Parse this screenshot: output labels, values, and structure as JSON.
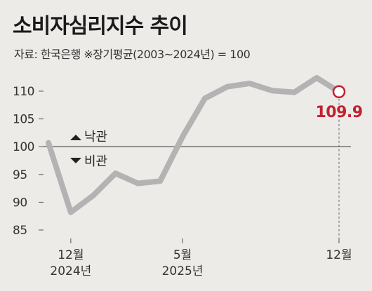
{
  "header": {
    "title": "소비자심리지수 추이",
    "source": "자료: 한국은행 ※장기평균(2003~2024년) = 100"
  },
  "chart_data": {
    "type": "line",
    "title": "소비자심리지수 추이",
    "x": [
      "2024-11",
      "2024-12",
      "2025-01",
      "2025-02",
      "2025-03",
      "2025-04",
      "2025-05",
      "2025-06",
      "2025-07",
      "2025-08",
      "2025-09",
      "2025-10",
      "2025-11",
      "2025-12"
    ],
    "series": [
      {
        "values": [
          100.7,
          88.2,
          91.2,
          95.2,
          93.4,
          93.8,
          101.8,
          108.7,
          110.8,
          111.4,
          110.1,
          109.8,
          112.4,
          109.9
        ]
      }
    ],
    "y_ticks": [
      85,
      90,
      95,
      100,
      105,
      110
    ],
    "ylim": [
      83,
      112
    ],
    "x_tick_labels": [
      {
        "x": "2024-12",
        "month": "12월",
        "year": "2024년"
      },
      {
        "x": "2025-05",
        "month": "5월",
        "year": "2025년"
      },
      {
        "x": "2025-12",
        "month": "12월",
        "year": ""
      }
    ],
    "reference_line": 100,
    "legend": {
      "up": "낙관",
      "down": "비관"
    },
    "highlight": {
      "x": "2025-12",
      "label": "109.9"
    },
    "grid": false,
    "line_color": "#b3b3b3",
    "highlight_color": "#c4202e"
  }
}
